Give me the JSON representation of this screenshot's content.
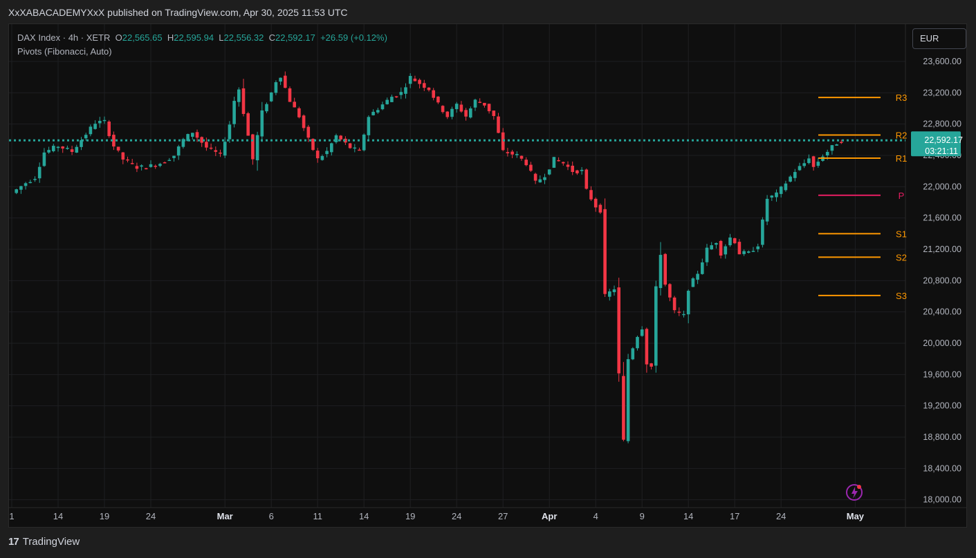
{
  "header": {
    "publish_line": "XxXABACADEMYXxX published on TradingView.com, Apr 30, 2025 11:53 UTC"
  },
  "legend": {
    "symbol": "DAX Index · 4h · XETR",
    "o_label": "O",
    "o_value": "22,565.65",
    "h_label": "H",
    "h_value": "22,595.94",
    "l_label": "L",
    "l_value": "22,556.32",
    "c_label": "C",
    "c_value": "22,592.17",
    "change": "+26.59 (+0.12%)",
    "indicator": "Pivots (Fibonacci, Auto)"
  },
  "currency": "EUR",
  "footer": {
    "brand": "TradingView",
    "logo_glyph": "17"
  },
  "colors": {
    "up": "#26a69a",
    "down": "#f23645",
    "pivot_orange": "#ff9800",
    "pivot_p": "#e91e63",
    "price_line": "#26a69a"
  },
  "chart_data": {
    "type": "candlestick",
    "timeframe": "4h",
    "ylim": [
      17900,
      23900
    ],
    "y_ticks": [
      "23,600.00",
      "23,200.00",
      "22,800.00",
      "22,400.00",
      "22,000.00",
      "21,600.00",
      "21,200.00",
      "20,800.00",
      "20,400.00",
      "20,000.00",
      "19,600.00",
      "19,200.00",
      "18,800.00",
      "18,400.00",
      "18,000.00"
    ],
    "y_tick_values": [
      23600,
      23200,
      22800,
      22400,
      22000,
      21600,
      21200,
      20800,
      20400,
      20000,
      19600,
      19200,
      18800,
      18400,
      18000
    ],
    "x_ticks": [
      {
        "label": "1",
        "bold": false,
        "bar": 0
      },
      {
        "label": "14",
        "bold": false,
        "bar": 10
      },
      {
        "label": "19",
        "bold": false,
        "bar": 20
      },
      {
        "label": "24",
        "bold": false,
        "bar": 30
      },
      {
        "label": "Mar",
        "bold": true,
        "bar": 46
      },
      {
        "label": "6",
        "bold": false,
        "bar": 56
      },
      {
        "label": "11",
        "bold": false,
        "bar": 66
      },
      {
        "label": "14",
        "bold": false,
        "bar": 76
      },
      {
        "label": "19",
        "bold": false,
        "bar": 86
      },
      {
        "label": "24",
        "bold": false,
        "bar": 96
      },
      {
        "label": "27",
        "bold": false,
        "bar": 106
      },
      {
        "label": "Apr",
        "bold": true,
        "bar": 116
      },
      {
        "label": "4",
        "bold": false,
        "bar": 126
      },
      {
        "label": "9",
        "bold": false,
        "bar": 136
      },
      {
        "label": "14",
        "bold": false,
        "bar": 146
      },
      {
        "label": "17",
        "bold": false,
        "bar": 156
      },
      {
        "label": "24",
        "bold": false,
        "bar": 166
      },
      {
        "label": "May",
        "bold": true,
        "bar": 182
      }
    ],
    "last_price": {
      "value": 22592.17,
      "label": "22,592.17",
      "countdown": "03:21:11"
    },
    "pivots": [
      {
        "label": "R3",
        "value": 23140,
        "color": "#ff9800"
      },
      {
        "label": "R2",
        "value": 22660,
        "color": "#ff9800"
      },
      {
        "label": "R1",
        "value": 22365,
        "color": "#ff9800"
      },
      {
        "label": "P",
        "value": 21890,
        "color": "#e91e63"
      },
      {
        "label": "S1",
        "value": 21400,
        "color": "#ff9800"
      },
      {
        "label": "S2",
        "value": 21100,
        "color": "#ff9800"
      },
      {
        "label": "S3",
        "value": 20610,
        "color": "#ff9800"
      }
    ],
    "anchors": [
      [
        0,
        21920
      ],
      [
        3,
        22050
      ],
      [
        5,
        22120
      ],
      [
        7,
        22440
      ],
      [
        10,
        22520
      ],
      [
        13,
        22450
      ],
      [
        15,
        22600
      ],
      [
        18,
        22820
      ],
      [
        20,
        22830
      ],
      [
        22,
        22520
      ],
      [
        24,
        22350
      ],
      [
        27,
        22250
      ],
      [
        29,
        22250
      ],
      [
        32,
        22300
      ],
      [
        35,
        22400
      ],
      [
        37,
        22600
      ],
      [
        39,
        22700
      ],
      [
        42,
        22500
      ],
      [
        45,
        22400
      ],
      [
        47,
        22800
      ],
      [
        48,
        23100
      ],
      [
        49,
        23250
      ],
      [
        51,
        22650
      ],
      [
        52,
        22350
      ],
      [
        54,
        22950
      ],
      [
        56,
        23200
      ],
      [
        57,
        23350
      ],
      [
        58,
        23420
      ],
      [
        60,
        23100
      ],
      [
        62,
        22900
      ],
      [
        64,
        22600
      ],
      [
        66,
        22350
      ],
      [
        68,
        22450
      ],
      [
        70,
        22650
      ],
      [
        73,
        22500
      ],
      [
        75,
        22450
      ],
      [
        77,
        22900
      ],
      [
        80,
        23050
      ],
      [
        82,
        23150
      ],
      [
        84,
        23200
      ],
      [
        86,
        23400
      ],
      [
        88,
        23320
      ],
      [
        90,
        23250
      ],
      [
        92,
        23050
      ],
      [
        94,
        22900
      ],
      [
        96,
        23050
      ],
      [
        98,
        22900
      ],
      [
        100,
        23100
      ],
      [
        102,
        23050
      ],
      [
        104,
        22900
      ],
      [
        106,
        22450
      ],
      [
        109,
        22400
      ],
      [
        111,
        22300
      ],
      [
        113,
        22050
      ],
      [
        115,
        22150
      ],
      [
        117,
        22350
      ],
      [
        119,
        22300
      ],
      [
        121,
        22200
      ],
      [
        123,
        22200
      ],
      [
        124,
        21950
      ],
      [
        126,
        21750
      ],
      [
        127,
        21700
      ],
      [
        128,
        20600
      ],
      [
        130,
        20700
      ],
      [
        131,
        19600
      ],
      [
        132,
        18750
      ],
      [
        133,
        19800
      ],
      [
        135,
        20100
      ],
      [
        136,
        20200
      ],
      [
        137,
        19750
      ],
      [
        138,
        19700
      ],
      [
        139,
        20700
      ],
      [
        140,
        21150
      ],
      [
        141,
        20750
      ],
      [
        143,
        20400
      ],
      [
        145,
        20350
      ],
      [
        146,
        20700
      ],
      [
        148,
        20900
      ],
      [
        150,
        21200
      ],
      [
        152,
        21300
      ],
      [
        153,
        21150
      ],
      [
        155,
        21350
      ],
      [
        156,
        21300
      ],
      [
        157,
        21150
      ],
      [
        159,
        21150
      ],
      [
        161,
        21260
      ],
      [
        163,
        21850
      ],
      [
        165,
        21900
      ],
      [
        167,
        22050
      ],
      [
        169,
        22200
      ],
      [
        171,
        22300
      ],
      [
        172,
        22380
      ],
      [
        173,
        22250
      ],
      [
        175,
        22400
      ],
      [
        176,
        22450
      ],
      [
        178,
        22560
      ],
      [
        179,
        22592
      ]
    ]
  }
}
